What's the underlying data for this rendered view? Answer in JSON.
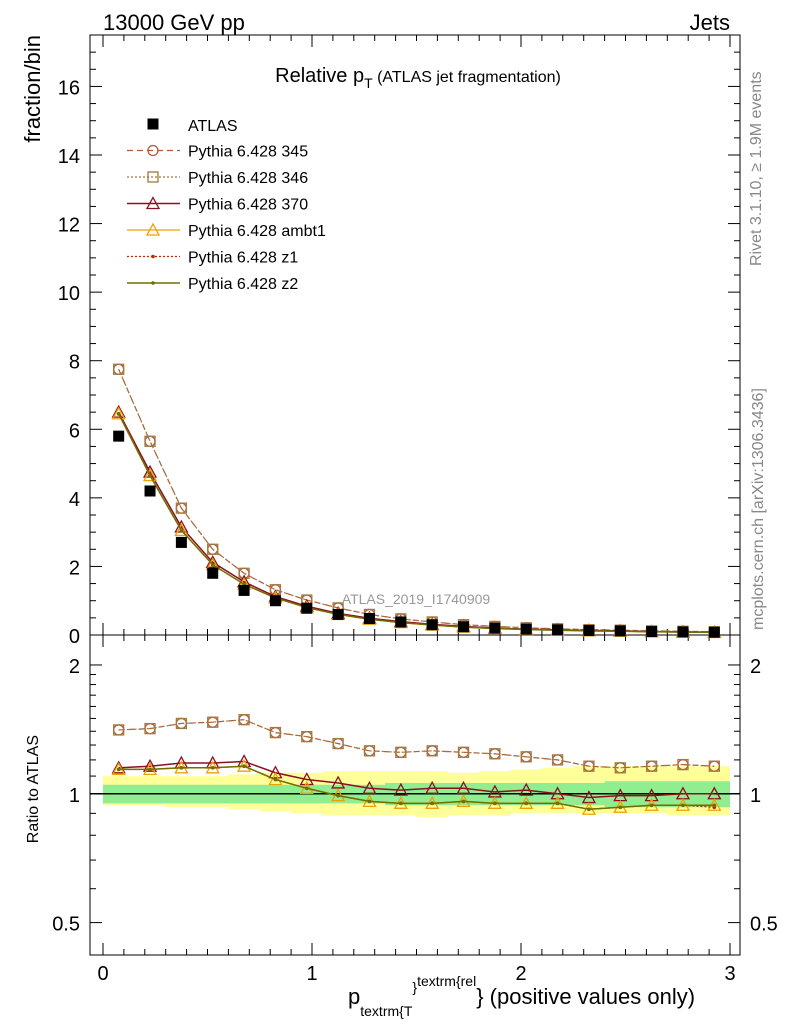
{
  "header": {
    "left": "13000 GeV pp",
    "right": "Jets"
  },
  "side_labels": {
    "rivet": "Rivet 3.1.10, ≥ 1.9M events",
    "mcplots": "mcplots.cern.ch [arXiv:1306.3436]"
  },
  "main_title": {
    "prefix": "Relative p",
    "sub": "T",
    "suffix": "(ATLAS jet fragmentation)"
  },
  "watermark": "ATLAS_2019_I1740909",
  "ylabel_main": "fraction/bin",
  "ylabel_ratio": "Ratio to ATLAS",
  "xlabel": {
    "p": "p",
    "sub": "textrm{T",
    "brace": "}",
    "sup": "textrm{rel",
    "rest": "} (positive values only)"
  },
  "colors": {
    "atlas": "#000000",
    "p345": "#b25a3a",
    "p346": "#a07840",
    "p370": "#8b1020",
    "ambt1": "#f0a000",
    "z1": "#cc2200",
    "z2": "#707000",
    "band_green": "#90ee90",
    "band_yellow": "#ffff99"
  },
  "chart_data": {
    "type": "line",
    "title": "Relative pT (ATLAS jet fragmentation)",
    "xlabel": "p_{textrm{T}}^{textrm{rel}} (positive values only)",
    "main": {
      "ylabel": "fraction/bin",
      "xlim": [
        -0.05,
        3.05
      ],
      "ylim": [
        0,
        17.5
      ],
      "yticks": [
        0,
        2,
        4,
        6,
        8,
        10,
        12,
        14,
        16
      ],
      "xticks": [
        0,
        1,
        2,
        3
      ]
    },
    "ratio": {
      "ylabel": "Ratio to ATLAS",
      "ylim": [
        0.42,
        2.35
      ],
      "yticks": [
        0.5,
        1,
        2
      ],
      "log": true
    },
    "x": [
      0.075,
      0.225,
      0.375,
      0.525,
      0.675,
      0.825,
      0.975,
      1.125,
      1.275,
      1.425,
      1.575,
      1.725,
      1.875,
      2.025,
      2.175,
      2.325,
      2.475,
      2.625,
      2.775,
      2.925
    ],
    "data": {
      "name": "ATLAS",
      "values": [
        5.8,
        4.2,
        2.7,
        1.8,
        1.3,
        1.0,
        0.78,
        0.6,
        0.48,
        0.38,
        0.3,
        0.24,
        0.2,
        0.17,
        0.15,
        0.13,
        0.12,
        0.1,
        0.09,
        0.08
      ]
    },
    "series": [
      {
        "name": "Pythia 6.428 345",
        "values": [
          7.75,
          5.65,
          3.7,
          2.5,
          1.8,
          1.32,
          1.02,
          0.79,
          0.6,
          0.47,
          0.38,
          0.3,
          0.25,
          0.21,
          0.18,
          0.155,
          0.14,
          0.12,
          0.108,
          0.095
        ]
      },
      {
        "name": "Pythia 6.428 346",
        "values": [
          7.75,
          5.65,
          3.7,
          2.5,
          1.8,
          1.32,
          1.02,
          0.79,
          0.6,
          0.47,
          0.38,
          0.3,
          0.25,
          0.21,
          0.18,
          0.155,
          0.14,
          0.12,
          0.108,
          0.095
        ]
      },
      {
        "name": "Pythia 6.428 370",
        "values": [
          6.5,
          4.75,
          3.15,
          2.12,
          1.55,
          1.12,
          0.84,
          0.63,
          0.49,
          0.39,
          0.31,
          0.25,
          0.2,
          0.17,
          0.15,
          0.13,
          0.12,
          0.1,
          0.09,
          0.08
        ]
      },
      {
        "name": "Pythia 6.428 ambt1",
        "values": [
          6.45,
          4.65,
          3.05,
          2.05,
          1.48,
          1.08,
          0.8,
          0.6,
          0.46,
          0.36,
          0.29,
          0.23,
          0.19,
          0.16,
          0.14,
          0.12,
          0.11,
          0.095,
          0.085,
          0.075
        ]
      },
      {
        "name": "Pythia 6.428 z1",
        "values": [
          6.45,
          4.65,
          3.05,
          2.05,
          1.48,
          1.08,
          0.8,
          0.6,
          0.46,
          0.36,
          0.29,
          0.23,
          0.19,
          0.16,
          0.14,
          0.12,
          0.11,
          0.095,
          0.085,
          0.075
        ]
      },
      {
        "name": "Pythia 6.428 z2",
        "values": [
          6.45,
          4.65,
          3.05,
          2.05,
          1.48,
          1.08,
          0.8,
          0.6,
          0.46,
          0.36,
          0.29,
          0.23,
          0.19,
          0.16,
          0.14,
          0.12,
          0.11,
          0.095,
          0.085,
          0.075
        ]
      }
    ],
    "ratios": [
      {
        "name": "Pythia 6.428 345",
        "values": [
          1.41,
          1.42,
          1.46,
          1.47,
          1.49,
          1.39,
          1.36,
          1.31,
          1.26,
          1.25,
          1.26,
          1.25,
          1.24,
          1.22,
          1.2,
          1.16,
          1.15,
          1.16,
          1.17,
          1.16
        ]
      },
      {
        "name": "Pythia 6.428 346",
        "values": [
          1.41,
          1.42,
          1.46,
          1.47,
          1.49,
          1.39,
          1.36,
          1.31,
          1.26,
          1.25,
          1.26,
          1.25,
          1.24,
          1.22,
          1.2,
          1.16,
          1.15,
          1.16,
          1.17,
          1.16
        ]
      },
      {
        "name": "Pythia 6.428 370",
        "values": [
          1.15,
          1.16,
          1.18,
          1.18,
          1.19,
          1.12,
          1.08,
          1.06,
          1.03,
          1.02,
          1.03,
          1.03,
          1.01,
          1.02,
          1.0,
          0.98,
          0.99,
          0.99,
          1.0,
          1.0
        ]
      },
      {
        "name": "Pythia 6.428 ambt1",
        "values": [
          1.14,
          1.14,
          1.15,
          1.15,
          1.16,
          1.08,
          1.03,
          0.99,
          0.96,
          0.95,
          0.95,
          0.96,
          0.95,
          0.95,
          0.95,
          0.92,
          0.93,
          0.94,
          0.94,
          0.94
        ]
      },
      {
        "name": "Pythia 6.428 z1",
        "values": [
          1.14,
          1.14,
          1.15,
          1.15,
          1.16,
          1.08,
          1.03,
          0.99,
          0.96,
          0.95,
          0.95,
          0.96,
          0.95,
          0.95,
          0.95,
          0.92,
          0.93,
          0.94,
          0.94,
          0.93
        ]
      },
      {
        "name": "Pythia 6.428 z2",
        "values": [
          1.14,
          1.14,
          1.15,
          1.15,
          1.16,
          1.08,
          1.03,
          0.99,
          0.96,
          0.95,
          0.95,
          0.96,
          0.95,
          0.95,
          0.95,
          0.92,
          0.93,
          0.94,
          0.94,
          0.94
        ]
      }
    ],
    "bands": {
      "green": [
        [
          0.95,
          1.05
        ],
        [
          0.95,
          1.05
        ],
        [
          0.95,
          1.05
        ],
        [
          0.95,
          1.05
        ],
        [
          0.95,
          1.05
        ],
        [
          0.95,
          1.05
        ],
        [
          0.95,
          1.05
        ],
        [
          0.95,
          1.05
        ],
        [
          0.95,
          1.05
        ],
        [
          0.94,
          1.06
        ],
        [
          0.94,
          1.06
        ],
        [
          0.94,
          1.06
        ],
        [
          0.94,
          1.06
        ],
        [
          0.94,
          1.06
        ],
        [
          0.94,
          1.06
        ],
        [
          0.94,
          1.06
        ],
        [
          0.93,
          1.07
        ],
        [
          0.93,
          1.07
        ],
        [
          0.93,
          1.07
        ],
        [
          0.93,
          1.07
        ]
      ],
      "yellow": [
        [
          0.94,
          1.1
        ],
        [
          0.94,
          1.1
        ],
        [
          0.93,
          1.1
        ],
        [
          0.93,
          1.1
        ],
        [
          0.92,
          1.11
        ],
        [
          0.91,
          1.12
        ],
        [
          0.9,
          1.12
        ],
        [
          0.89,
          1.13
        ],
        [
          0.89,
          1.13
        ],
        [
          0.89,
          1.13
        ],
        [
          0.88,
          1.13
        ],
        [
          0.89,
          1.12
        ],
        [
          0.89,
          1.13
        ],
        [
          0.9,
          1.14
        ],
        [
          0.9,
          1.15
        ],
        [
          0.9,
          1.16
        ],
        [
          0.9,
          1.16
        ],
        [
          0.9,
          1.16
        ],
        [
          0.89,
          1.16
        ],
        [
          0.89,
          1.16
        ]
      ]
    },
    "legend_position": "top-left"
  }
}
